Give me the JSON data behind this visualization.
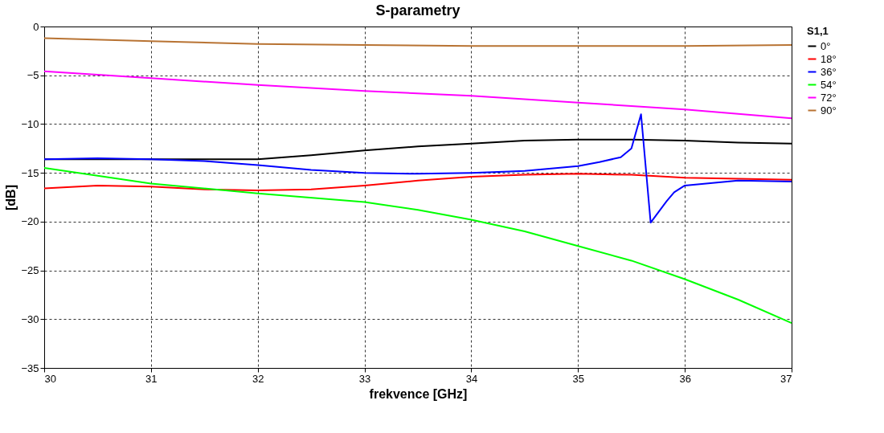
{
  "chart_data": {
    "type": "line",
    "title": "S-parametry",
    "xlabel": "frekvence [GHz]",
    "ylabel": "[dB]",
    "legend_title": "S1,1",
    "legend": "right",
    "grid": true,
    "line_style": "solid",
    "marker": "none",
    "xlim": [
      30,
      37
    ],
    "xticks": [
      30,
      31,
      32,
      33,
      34,
      35,
      36,
      37
    ],
    "ylim": [
      -35,
      0
    ],
    "yticks": [
      -35,
      -30,
      -25,
      -20,
      -15,
      -10,
      -5,
      0
    ],
    "series": [
      {
        "name": "0°",
        "color": "#000000",
        "x": [
          30,
          31,
          32,
          32.5,
          33,
          33.5,
          34,
          34.5,
          35,
          35.5,
          36,
          36.5,
          37
        ],
        "values": [
          -13.6,
          -13.6,
          -13.6,
          -13.2,
          -12.7,
          -12.3,
          -12.0,
          -11.7,
          -11.6,
          -11.6,
          -11.7,
          -11.9,
          -12.0
        ]
      },
      {
        "name": "18°",
        "color": "#ff0000",
        "x": [
          30,
          30.5,
          31,
          31.5,
          32,
          32.5,
          33,
          33.5,
          34,
          34.5,
          35,
          35.5,
          36,
          36.5,
          37
        ],
        "values": [
          -16.6,
          -16.3,
          -16.4,
          -16.7,
          -16.8,
          -16.7,
          -16.3,
          -15.8,
          -15.4,
          -15.2,
          -15.1,
          -15.2,
          -15.5,
          -15.6,
          -15.7
        ]
      },
      {
        "name": "36°",
        "color": "#0000ff",
        "x": [
          30,
          30.5,
          31,
          31.5,
          32,
          32.5,
          33,
          33.5,
          34,
          34.5,
          35,
          35.2,
          35.4,
          35.5,
          35.59,
          35.68,
          35.83,
          35.9,
          36,
          36.5,
          37
        ],
        "values": [
          -13.6,
          -13.5,
          -13.6,
          -13.8,
          -14.2,
          -14.7,
          -15.0,
          -15.1,
          -15.0,
          -14.8,
          -14.3,
          -13.9,
          -13.4,
          -12.5,
          -9.0,
          -20.1,
          -17.9,
          -17.0,
          -16.3,
          -15.8,
          -15.9
        ]
      },
      {
        "name": "54°",
        "color": "#00ff00",
        "x": [
          30,
          31,
          32,
          33,
          33.5,
          34,
          34.5,
          35,
          35.5,
          36,
          36.5,
          37
        ],
        "values": [
          -14.5,
          -16.1,
          -17.1,
          -18.0,
          -18.8,
          -19.8,
          -21.0,
          -22.5,
          -24.0,
          -25.9,
          -28.0,
          -30.4
        ]
      },
      {
        "name": "72°",
        "color": "#ff00ff",
        "x": [
          30,
          31,
          32,
          33,
          34,
          35,
          36,
          37
        ],
        "values": [
          -4.6,
          -5.3,
          -6.0,
          -6.6,
          -7.1,
          -7.8,
          -8.5,
          -9.4
        ]
      },
      {
        "name": "90°",
        "color": "#b87333",
        "x": [
          30,
          31,
          32,
          33,
          34,
          35,
          36,
          37
        ],
        "values": [
          -1.2,
          -1.5,
          -1.8,
          -1.9,
          -2.0,
          -2.0,
          -2.0,
          -1.9
        ]
      }
    ]
  }
}
